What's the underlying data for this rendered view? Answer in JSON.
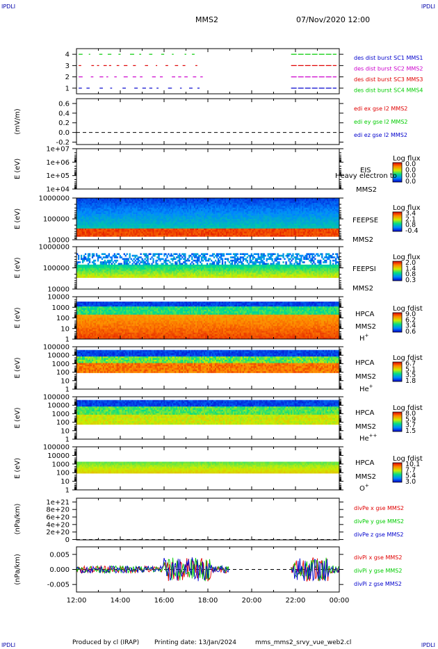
{
  "corner_label": "IPDLI",
  "header": {
    "spacecraft": "MMS2",
    "date": "07/Nov/2020 12:00"
  },
  "footer": {
    "produced_by": "Produced by cl (IRAP)",
    "printing_date": "Printing date: 13/Jan/2024",
    "script": "mms_mms2_srvy_vue_web2.cl"
  },
  "colors": {
    "red": "#e00000",
    "green": "#00cc00",
    "blue": "#0000cc",
    "magenta": "#cc00cc"
  },
  "chart_data": {
    "type": "multi-panel spectrogram / timeseries",
    "x": {
      "ticks": [
        "12:00",
        "14:00",
        "16:00",
        "18:00",
        "20:00",
        "22:00",
        "00:00"
      ],
      "range": [
        "12:00",
        "00:00"
      ]
    },
    "panels": [
      {
        "id": "burst",
        "type": "scatter",
        "ylim": [
          0.5,
          4.5
        ],
        "yticks": [
          "1",
          "2",
          "3",
          "4"
        ],
        "legend": [
          {
            "text": "des dist burst SC1 MMS1",
            "color": "#0000cc"
          },
          {
            "text": "des dist burst SC2 MMS2",
            "color": "#cc00cc"
          },
          {
            "text": "des dist burst SC3 MMS3",
            "color": "#e00000"
          },
          {
            "text": "des dist burst SC4 MMS4",
            "color": "#00cc00"
          }
        ]
      },
      {
        "id": "edi",
        "type": "line",
        "ylabel": "(mV/m)",
        "ylim": [
          -0.25,
          0.7
        ],
        "yticks": [
          "0.6",
          "0.4",
          "0.2",
          "0.0",
          "-0.2"
        ],
        "legend": [
          {
            "text": "edi ex gse l2 MMS2",
            "color": "#e00000"
          },
          {
            "text": "edi ey gse l2 MMS2",
            "color": "#00cc00"
          },
          {
            "text": "edi ez gse l2 MMS2",
            "color": "#0000cc"
          }
        ]
      },
      {
        "id": "eis",
        "type": "heatmap",
        "ylabel": "E (eV)",
        "yticks": [
          "1e+07",
          "1e+06",
          "1e+05",
          "1e+04"
        ],
        "instrument": "EIS",
        "species": "Heavy electron to",
        "sc": "MMS2",
        "cbar": {
          "title": "Log flux",
          "ticks": [
            "0.0",
            "0.0",
            "0.0",
            "0.0"
          ]
        }
      },
      {
        "id": "feepse",
        "type": "heatmap",
        "ylabel": "E (eV)",
        "yticks": [
          "1000000",
          "100000",
          "10000"
        ],
        "instrument": "FEEPSE",
        "sc": "MMS2",
        "cbar": {
          "title": "Log flux",
          "ticks": [
            "3.4",
            "2.1",
            "0.8",
            "-0.4"
          ]
        }
      },
      {
        "id": "feepsi",
        "type": "heatmap",
        "ylabel": "E (eV)",
        "yticks": [
          "1000000",
          "100000",
          "10000"
        ],
        "instrument": "FEEPSI",
        "sc": "MMS2",
        "cbar": {
          "title": "Log flux",
          "ticks": [
            "2.0",
            "1.4",
            "0.8",
            "0.3"
          ]
        }
      },
      {
        "id": "hpca_h",
        "type": "heatmap",
        "ylabel": "E (eV)",
        "yticks": [
          "10000",
          "1000",
          "100",
          "10",
          "1"
        ],
        "instrument": "HPCA",
        "sc": "MMS2",
        "species": "H",
        "charge": "+",
        "cbar": {
          "title": "Log fdist",
          "ticks": [
            "9.0",
            "6.2",
            "3.4",
            "0.6"
          ]
        }
      },
      {
        "id": "hpca_he1",
        "type": "heatmap",
        "ylabel": "E (eV)",
        "yticks": [
          "100000",
          "10000",
          "1000",
          "100",
          "10",
          "1"
        ],
        "instrument": "HPCA",
        "sc": "MMS2",
        "species": "He",
        "charge": "+",
        "cbar": {
          "title": "Log fdist",
          "ticks": [
            "6.7",
            "5.1",
            "3.5",
            "1.8"
          ]
        }
      },
      {
        "id": "hpca_he2",
        "type": "heatmap",
        "ylabel": "E (eV)",
        "yticks": [
          "100000",
          "10000",
          "1000",
          "100",
          "10",
          "1"
        ],
        "instrument": "HPCA",
        "sc": "MMS2",
        "species": "He",
        "charge": "++",
        "cbar": {
          "title": "Log fdist",
          "ticks": [
            "8.0",
            "5.9",
            "3.7",
            "1.5"
          ]
        }
      },
      {
        "id": "hpca_o",
        "type": "heatmap",
        "ylabel": "E (eV)",
        "yticks": [
          "100000",
          "10000",
          "1000",
          "100",
          "10",
          "1"
        ],
        "instrument": "HPCA",
        "sc": "MMS2",
        "species": "O",
        "charge": "+",
        "cbar": {
          "title": "Log fdist",
          "ticks": [
            "10.1",
            "7.7",
            "5.4",
            "3.0"
          ]
        }
      },
      {
        "id": "divpe",
        "type": "line",
        "ylabel": "(nPa/km)",
        "ylim": [
          -1e+19,
          1.1e+21
        ],
        "yticks": [
          "1e+21",
          "8e+20",
          "6e+20",
          "4e+20",
          "2e+20",
          "0"
        ],
        "legend": [
          {
            "text": "divPe x gse MMS2",
            "color": "#e00000"
          },
          {
            "text": "divPe y gse MMS2",
            "color": "#00cc00"
          },
          {
            "text": "divPe z gse MMS2",
            "color": "#0000cc"
          }
        ]
      },
      {
        "id": "divpi",
        "type": "line",
        "ylabel": "(nPa/km)",
        "ylim": [
          -0.0075,
          0.0075
        ],
        "yticks": [
          "0.005",
          "0.000",
          "-0.005"
        ],
        "legend": [
          {
            "text": "divPi x gse MMS2",
            "color": "#e00000"
          },
          {
            "text": "divPi y gse MMS2",
            "color": "#00cc00"
          },
          {
            "text": "divPi z gse MMS2",
            "color": "#0000cc"
          }
        ]
      }
    ]
  }
}
